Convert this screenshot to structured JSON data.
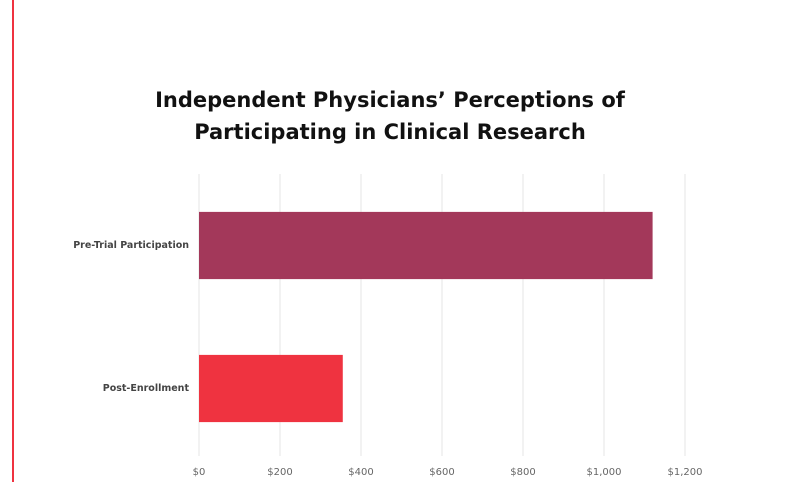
{
  "chart_data": {
    "type": "hbar",
    "title": "Independent Physicians’ Perceptions of Participating in Clinical Research",
    "categories": [
      "Pre-Trial Participation",
      "Post-Enrollment"
    ],
    "values": [
      1120,
      355
    ],
    "colors": [
      "#a3385a",
      "#ef3340"
    ],
    "xlim": [
      0,
      1200
    ],
    "xticks": [
      {
        "value": 0,
        "label": "$0"
      },
      {
        "value": 200,
        "label": "$200"
      },
      {
        "value": 400,
        "label": "$400"
      },
      {
        "value": 600,
        "label": "$600"
      },
      {
        "value": 800,
        "label": "$800"
      },
      {
        "value": 1000,
        "label": "$1,000"
      },
      {
        "value": 1200,
        "label": "$1,200"
      }
    ],
    "grid": true
  }
}
